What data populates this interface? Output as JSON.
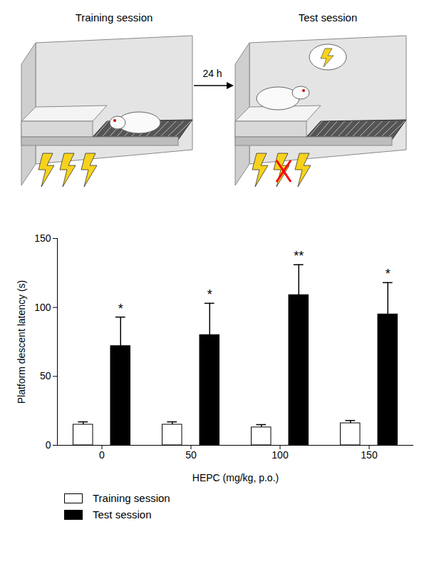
{
  "chart_data": {
    "type": "bar",
    "illustration": {
      "panels": [
        "Training session",
        "Test session"
      ],
      "interval": "24 h"
    },
    "categories": [
      "0",
      "50",
      "100",
      "150"
    ],
    "x_label": "HEPC (mg/kg, p.o.)",
    "y_label": "Platform descent latency (s)",
    "series": [
      {
        "name": "Training session",
        "color": "#ffffff",
        "values": [
          15,
          15,
          13,
          16
        ],
        "errors": [
          2,
          2,
          2,
          2
        ]
      },
      {
        "name": "Test session",
        "color": "#000000",
        "values": [
          72,
          80,
          109,
          95
        ],
        "errors": [
          21,
          23,
          22,
          23
        ],
        "annotations": [
          "*",
          "*",
          "**",
          "*"
        ]
      }
    ],
    "ylim": [
      0,
      150
    ],
    "yticks": [
      0,
      50,
      100,
      150
    ],
    "grid": false,
    "legend": "bottom"
  }
}
